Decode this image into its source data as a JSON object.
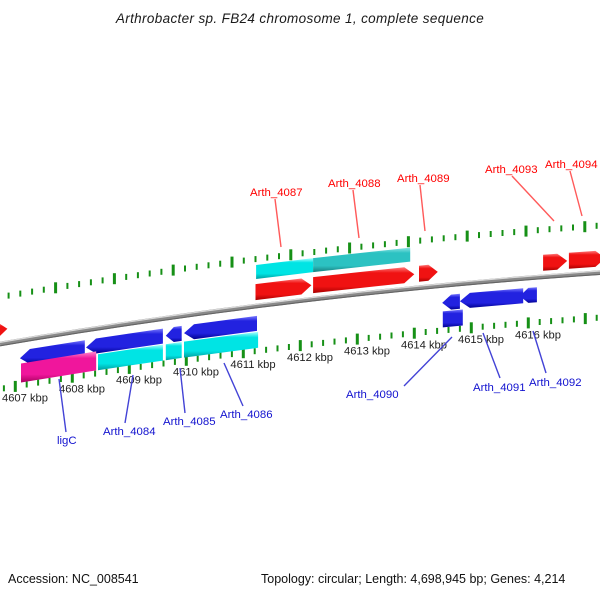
{
  "title": "Arthrobacter sp. FB24 chromosome 1, complete sequence",
  "footer": {
    "accession": "Accession: NC_008541",
    "topology": "Topology: circular; Length: 4,698,945 bp; Genes: 4,214"
  },
  "ruler": {
    "unit": "kbp",
    "major_ticks_kbp": [
      4607,
      4608,
      4609,
      4610,
      4611,
      4612,
      4613,
      4614,
      4615,
      4616
    ],
    "labels": [
      "4607 kbp",
      "4608 kbp",
      "4609 kbp",
      "4610 kbp",
      "4611 kbp",
      "4612 kbp",
      "4613 kbp",
      "4614 kbp",
      "4615 kbp",
      "4616 kbp"
    ],
    "minor_per_major": 5
  },
  "colors": {
    "forward_gene": "#ee1111",
    "reverse_gene": "#1c1cdd",
    "bar_cyan": "#00dede",
    "bar_teal": "#2cc2c2",
    "bar_magenta": "#ee1094",
    "axis_gray": "#8a8a8a",
    "tick_green": "#169016",
    "label_red": "#ff0000",
    "label_blue": "#1212cf",
    "leader_red": "#ff5a5a",
    "leader_blue": "#4343d6",
    "text": "#222222"
  },
  "features": [
    {
      "id": "f1",
      "label": "",
      "side": "above",
      "shape": "arrow-right",
      "color": "red",
      "start_kbp": 4606.8,
      "end_kbp": 4607.18
    },
    {
      "id": "f2",
      "label": "Arth_4087",
      "side": "above",
      "shape": "arrow-right",
      "color": "red",
      "start_kbp": 4611.4,
      "end_kbp": 4612.35
    },
    {
      "id": "f3",
      "label": "Arth_4088",
      "side": "above",
      "shape": "arrow-right",
      "color": "red",
      "start_kbp": 4612.38,
      "end_kbp": 4614.1
    },
    {
      "id": "f4",
      "label": "Arth_4089",
      "side": "above",
      "shape": "arrow-right",
      "color": "red",
      "start_kbp": 4614.18,
      "end_kbp": 4614.5
    },
    {
      "id": "f5",
      "label": "Arth_4093",
      "side": "above",
      "shape": "arrow-right",
      "color": "red",
      "start_kbp": 4616.29,
      "end_kbp": 4616.7
    },
    {
      "id": "f6",
      "label": "Arth_4094",
      "side": "above",
      "shape": "arrow-right",
      "color": "red",
      "start_kbp": 4616.73,
      "end_kbp": 4617.35
    },
    {
      "id": "b1",
      "label": "",
      "side": "above-bar",
      "shape": "bar",
      "color": "cyan",
      "start_kbp": 4611.41,
      "end_kbp": 4612.38
    },
    {
      "id": "b2",
      "label": "",
      "side": "above-bar",
      "shape": "bar",
      "color": "teal",
      "start_kbp": 4612.38,
      "end_kbp": 4614.03
    },
    {
      "id": "f7",
      "label": "ligC",
      "side": "below",
      "shape": "arrow-left",
      "color": "blue",
      "start_kbp": 4606.98,
      "end_kbp": 4608.12
    },
    {
      "id": "f8",
      "label": "Arth_4084",
      "side": "below",
      "shape": "arrow-left",
      "color": "blue",
      "start_kbp": 4608.14,
      "end_kbp": 4609.49
    },
    {
      "id": "f9",
      "label": "Arth_4085",
      "side": "below",
      "shape": "arrow-left",
      "color": "blue",
      "start_kbp": 4609.54,
      "end_kbp": 4609.82
    },
    {
      "id": "f10",
      "label": "Arth_4086",
      "side": "below",
      "shape": "arrow-left",
      "color": "blue",
      "start_kbp": 4609.86,
      "end_kbp": 4611.14
    },
    {
      "id": "f11",
      "label": "Arth_4090",
      "side": "below",
      "shape": "arrow-left",
      "color": "blue",
      "start_kbp": 4614.39,
      "end_kbp": 4614.7
    },
    {
      "id": "f12",
      "label": "Arth_4091",
      "side": "below",
      "shape": "arrow-left",
      "color": "blue",
      "start_kbp": 4614.7,
      "end_kbp": 4615.81
    },
    {
      "id": "f13",
      "label": "Arth_4092",
      "side": "below",
      "shape": "arrow-left",
      "color": "blue",
      "start_kbp": 4615.75,
      "end_kbp": 4616.05
    },
    {
      "id": "r1",
      "label": "",
      "side": "below-bar",
      "shape": "bar",
      "color": "blue",
      "start_kbp": 4614.4,
      "end_kbp": 4614.75
    },
    {
      "id": "bb1",
      "label": "",
      "side": "below-bar",
      "shape": "bar",
      "color": "magenta",
      "start_kbp": 4607.0,
      "end_kbp": 4608.32
    },
    {
      "id": "bb2",
      "label": "",
      "side": "below-bar",
      "shape": "bar",
      "color": "cyan",
      "start_kbp": 4608.35,
      "end_kbp": 4609.49
    },
    {
      "id": "bb3",
      "label": "",
      "side": "below-bar",
      "shape": "bar",
      "color": "cyan",
      "start_kbp": 4609.54,
      "end_kbp": 4609.82
    },
    {
      "id": "bb4",
      "label": "",
      "side": "below-bar",
      "shape": "bar",
      "color": "cyan",
      "start_kbp": 4609.86,
      "end_kbp": 4611.16
    }
  ]
}
